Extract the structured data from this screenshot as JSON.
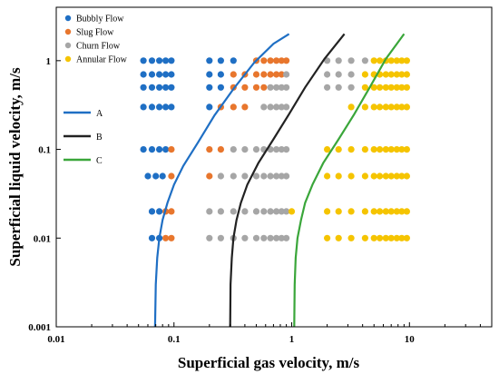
{
  "chart_data": {
    "type": "scatter",
    "title": "",
    "xlabel": "Superficial gas velocity, m/s",
    "ylabel": "Superficial liquid velocity, m/s",
    "x_scale": "log",
    "y_scale": "log",
    "xlim": [
      0.01,
      50
    ],
    "ylim": [
      0.001,
      4
    ],
    "x_ticks": [
      "0.01",
      "0.1",
      "1",
      "10"
    ],
    "y_ticks": [
      "0.001",
      "0.01",
      "0.1",
      "1"
    ],
    "grid": false,
    "legend_position": "top-left",
    "series": [
      {
        "name": "Bubbly Flow",
        "color": "#1f6fc4",
        "points": [
          [
            0.055,
            1
          ],
          [
            0.065,
            1
          ],
          [
            0.075,
            1
          ],
          [
            0.085,
            1
          ],
          [
            0.095,
            1
          ],
          [
            0.2,
            1
          ],
          [
            0.25,
            1
          ],
          [
            0.32,
            1
          ],
          [
            0.055,
            0.7
          ],
          [
            0.065,
            0.7
          ],
          [
            0.075,
            0.7
          ],
          [
            0.085,
            0.7
          ],
          [
            0.095,
            0.7
          ],
          [
            0.2,
            0.7
          ],
          [
            0.25,
            0.7
          ],
          [
            0.055,
            0.5
          ],
          [
            0.065,
            0.5
          ],
          [
            0.075,
            0.5
          ],
          [
            0.085,
            0.5
          ],
          [
            0.095,
            0.5
          ],
          [
            0.2,
            0.5
          ],
          [
            0.25,
            0.5
          ],
          [
            0.055,
            0.3
          ],
          [
            0.065,
            0.3
          ],
          [
            0.075,
            0.3
          ],
          [
            0.085,
            0.3
          ],
          [
            0.095,
            0.3
          ],
          [
            0.2,
            0.3
          ],
          [
            0.055,
            0.1
          ],
          [
            0.065,
            0.1
          ],
          [
            0.075,
            0.1
          ],
          [
            0.085,
            0.1
          ],
          [
            0.06,
            0.05
          ],
          [
            0.07,
            0.05
          ],
          [
            0.08,
            0.05
          ],
          [
            0.065,
            0.02
          ],
          [
            0.075,
            0.02
          ],
          [
            0.065,
            0.01
          ],
          [
            0.075,
            0.01
          ]
        ]
      },
      {
        "name": "Slug Flow",
        "color": "#e8762d",
        "points": [
          [
            0.5,
            1
          ],
          [
            0.58,
            1
          ],
          [
            0.66,
            1
          ],
          [
            0.74,
            1
          ],
          [
            0.82,
            1
          ],
          [
            0.9,
            1
          ],
          [
            0.32,
            0.7
          ],
          [
            0.4,
            0.7
          ],
          [
            0.5,
            0.7
          ],
          [
            0.58,
            0.7
          ],
          [
            0.66,
            0.7
          ],
          [
            0.74,
            0.7
          ],
          [
            0.82,
            0.7
          ],
          [
            0.32,
            0.5
          ],
          [
            0.4,
            0.5
          ],
          [
            0.5,
            0.5
          ],
          [
            0.58,
            0.5
          ],
          [
            0.25,
            0.3
          ],
          [
            0.32,
            0.3
          ],
          [
            0.4,
            0.3
          ],
          [
            0.095,
            0.1
          ],
          [
            0.2,
            0.1
          ],
          [
            0.25,
            0.1
          ],
          [
            0.095,
            0.05
          ],
          [
            0.2,
            0.05
          ],
          [
            0.085,
            0.02
          ],
          [
            0.095,
            0.02
          ],
          [
            0.085,
            0.01
          ],
          [
            0.095,
            0.01
          ]
        ]
      },
      {
        "name": "Churn Flow",
        "color": "#a6a6a6",
        "points": [
          [
            2,
            1
          ],
          [
            2.5,
            1
          ],
          [
            3.2,
            1
          ],
          [
            4.2,
            1
          ],
          [
            0.9,
            0.7
          ],
          [
            2,
            0.7
          ],
          [
            2.5,
            0.7
          ],
          [
            3.2,
            0.7
          ],
          [
            0.66,
            0.5
          ],
          [
            0.74,
            0.5
          ],
          [
            0.82,
            0.5
          ],
          [
            0.9,
            0.5
          ],
          [
            2,
            0.5
          ],
          [
            2.5,
            0.5
          ],
          [
            3.2,
            0.5
          ],
          [
            0.58,
            0.3
          ],
          [
            0.66,
            0.3
          ],
          [
            0.74,
            0.3
          ],
          [
            0.82,
            0.3
          ],
          [
            0.9,
            0.3
          ],
          [
            0.32,
            0.1
          ],
          [
            0.4,
            0.1
          ],
          [
            0.5,
            0.1
          ],
          [
            0.58,
            0.1
          ],
          [
            0.66,
            0.1
          ],
          [
            0.74,
            0.1
          ],
          [
            0.82,
            0.1
          ],
          [
            0.9,
            0.1
          ],
          [
            0.25,
            0.05
          ],
          [
            0.32,
            0.05
          ],
          [
            0.4,
            0.05
          ],
          [
            0.5,
            0.05
          ],
          [
            0.58,
            0.05
          ],
          [
            0.66,
            0.05
          ],
          [
            0.74,
            0.05
          ],
          [
            0.82,
            0.05
          ],
          [
            0.9,
            0.05
          ],
          [
            0.2,
            0.02
          ],
          [
            0.25,
            0.02
          ],
          [
            0.32,
            0.02
          ],
          [
            0.4,
            0.02
          ],
          [
            0.5,
            0.02
          ],
          [
            0.58,
            0.02
          ],
          [
            0.66,
            0.02
          ],
          [
            0.74,
            0.02
          ],
          [
            0.82,
            0.02
          ],
          [
            0.9,
            0.02
          ],
          [
            0.2,
            0.01
          ],
          [
            0.25,
            0.01
          ],
          [
            0.32,
            0.01
          ],
          [
            0.4,
            0.01
          ],
          [
            0.5,
            0.01
          ],
          [
            0.58,
            0.01
          ],
          [
            0.66,
            0.01
          ],
          [
            0.74,
            0.01
          ],
          [
            0.82,
            0.01
          ],
          [
            0.9,
            0.01
          ]
        ]
      },
      {
        "name": "Annular Flow",
        "color": "#f5c400",
        "points": [
          [
            5,
            1
          ],
          [
            5.6,
            1
          ],
          [
            6.3,
            1
          ],
          [
            7,
            1
          ],
          [
            7.8,
            1
          ],
          [
            8.6,
            1
          ],
          [
            9.5,
            1
          ],
          [
            4.2,
            0.7
          ],
          [
            5,
            0.7
          ],
          [
            5.6,
            0.7
          ],
          [
            6.3,
            0.7
          ],
          [
            7,
            0.7
          ],
          [
            7.8,
            0.7
          ],
          [
            8.6,
            0.7
          ],
          [
            9.5,
            0.7
          ],
          [
            4.2,
            0.5
          ],
          [
            5,
            0.5
          ],
          [
            5.6,
            0.5
          ],
          [
            6.3,
            0.5
          ],
          [
            7,
            0.5
          ],
          [
            7.8,
            0.5
          ],
          [
            8.6,
            0.5
          ],
          [
            9.5,
            0.5
          ],
          [
            3.2,
            0.3
          ],
          [
            4.2,
            0.3
          ],
          [
            5,
            0.3
          ],
          [
            5.6,
            0.3
          ],
          [
            6.3,
            0.3
          ],
          [
            7,
            0.3
          ],
          [
            7.8,
            0.3
          ],
          [
            8.6,
            0.3
          ],
          [
            9.5,
            0.3
          ],
          [
            2,
            0.1
          ],
          [
            2.5,
            0.1
          ],
          [
            3.2,
            0.1
          ],
          [
            4.2,
            0.1
          ],
          [
            5,
            0.1
          ],
          [
            5.6,
            0.1
          ],
          [
            6.3,
            0.1
          ],
          [
            7,
            0.1
          ],
          [
            7.8,
            0.1
          ],
          [
            8.6,
            0.1
          ],
          [
            9.5,
            0.1
          ],
          [
            2,
            0.05
          ],
          [
            2.5,
            0.05
          ],
          [
            3.2,
            0.05
          ],
          [
            4.2,
            0.05
          ],
          [
            5,
            0.05
          ],
          [
            5.6,
            0.05
          ],
          [
            6.3,
            0.05
          ],
          [
            7,
            0.05
          ],
          [
            7.8,
            0.05
          ],
          [
            8.6,
            0.05
          ],
          [
            9.5,
            0.05
          ],
          [
            1,
            0.02
          ],
          [
            2,
            0.02
          ],
          [
            2.5,
            0.02
          ],
          [
            3.2,
            0.02
          ],
          [
            4.2,
            0.02
          ],
          [
            5,
            0.02
          ],
          [
            5.6,
            0.02
          ],
          [
            6.3,
            0.02
          ],
          [
            7,
            0.02
          ],
          [
            7.8,
            0.02
          ],
          [
            8.6,
            0.02
          ],
          [
            9.5,
            0.02
          ],
          [
            2,
            0.01
          ],
          [
            2.5,
            0.01
          ],
          [
            3.2,
            0.01
          ],
          [
            4.2,
            0.01
          ],
          [
            5,
            0.01
          ],
          [
            5.6,
            0.01
          ],
          [
            6.3,
            0.01
          ],
          [
            7,
            0.01
          ],
          [
            7.8,
            0.01
          ],
          [
            8.6,
            0.01
          ],
          [
            9.5,
            0.01
          ]
        ]
      }
    ],
    "lines": [
      {
        "name": "A",
        "color": "#1f6fc4",
        "points": [
          [
            0.069,
            0.001
          ],
          [
            0.07,
            0.003
          ],
          [
            0.072,
            0.006
          ],
          [
            0.075,
            0.01
          ],
          [
            0.08,
            0.016
          ],
          [
            0.088,
            0.025
          ],
          [
            0.1,
            0.04
          ],
          [
            0.12,
            0.065
          ],
          [
            0.16,
            0.12
          ],
          [
            0.22,
            0.24
          ],
          [
            0.32,
            0.48
          ],
          [
            0.48,
            0.95
          ],
          [
            0.7,
            1.55
          ],
          [
            0.95,
            2.0
          ]
        ]
      },
      {
        "name": "B",
        "color": "#222222",
        "points": [
          [
            0.3,
            0.001
          ],
          [
            0.302,
            0.003
          ],
          [
            0.31,
            0.006
          ],
          [
            0.32,
            0.01
          ],
          [
            0.34,
            0.016
          ],
          [
            0.37,
            0.025
          ],
          [
            0.42,
            0.04
          ],
          [
            0.52,
            0.07
          ],
          [
            0.7,
            0.13
          ],
          [
            0.95,
            0.25
          ],
          [
            1.3,
            0.5
          ],
          [
            1.9,
            1.05
          ],
          [
            2.8,
            2.0
          ]
        ]
      },
      {
        "name": "C",
        "color": "#3aa63a",
        "points": [
          [
            1.05,
            0.001
          ],
          [
            1.06,
            0.003
          ],
          [
            1.08,
            0.006
          ],
          [
            1.12,
            0.01
          ],
          [
            1.2,
            0.016
          ],
          [
            1.3,
            0.025
          ],
          [
            1.5,
            0.04
          ],
          [
            1.85,
            0.07
          ],
          [
            2.5,
            0.13
          ],
          [
            3.4,
            0.25
          ],
          [
            4.6,
            0.5
          ],
          [
            6.3,
            1.05
          ],
          [
            9.0,
            2.0
          ]
        ]
      }
    ]
  }
}
